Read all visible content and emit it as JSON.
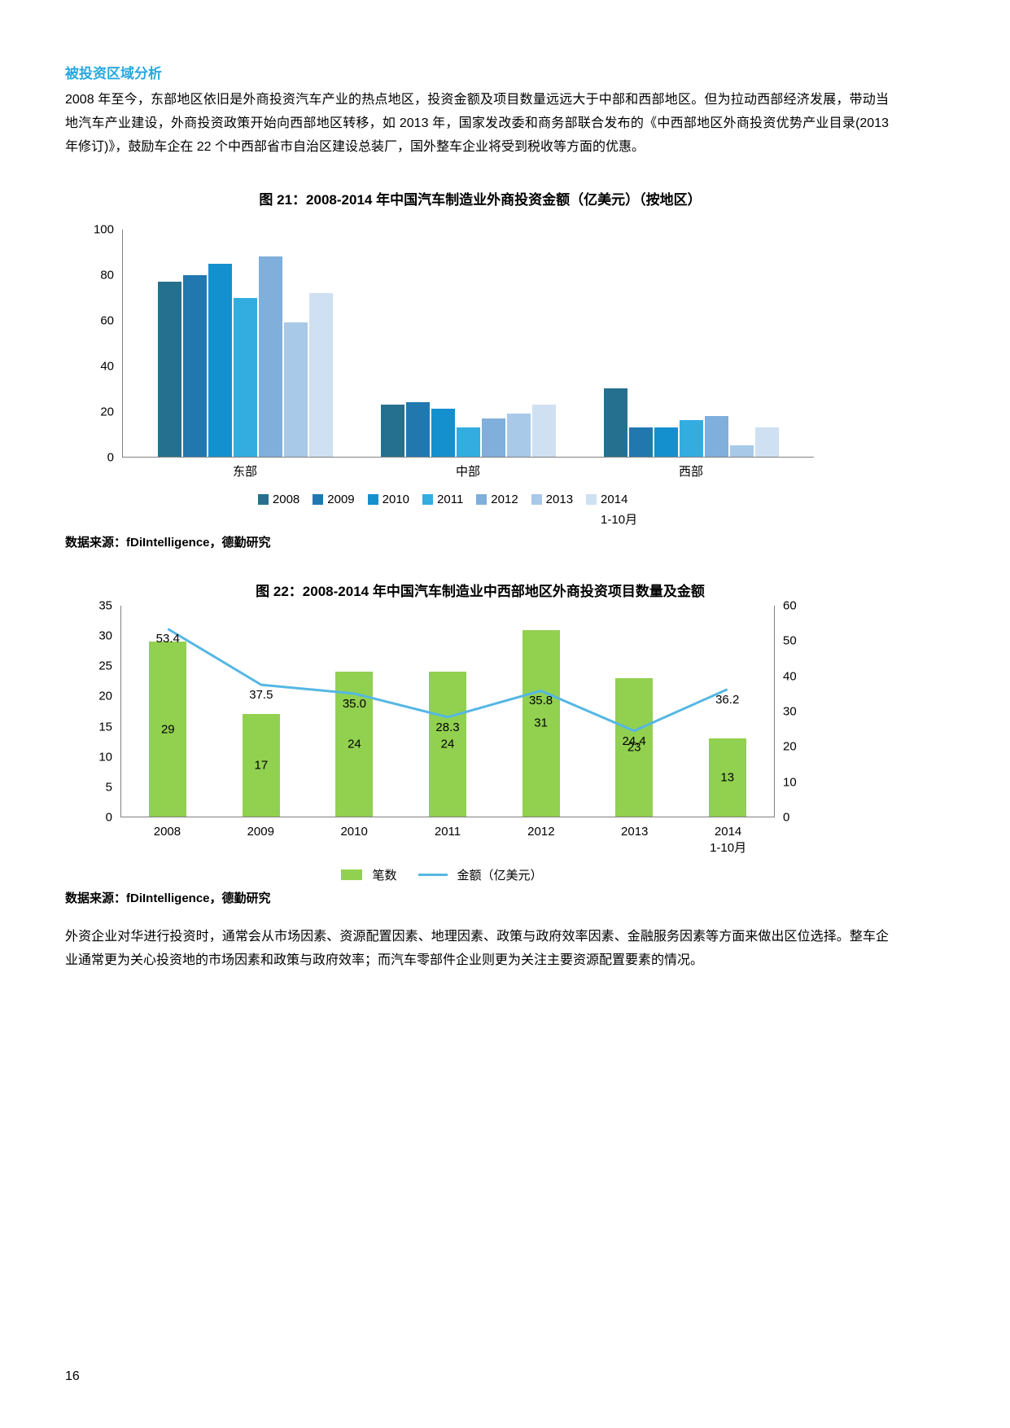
{
  "page": {
    "section_heading": "被投资区域分析",
    "paragraph_top": "2008 年至今，东部地区依旧是外商投资汽车产业的热点地区，投资金额及项目数量远远大于中部和西部地区。但为拉动西部经济发展，带动当地汽车产业建设，外商投资政策开始向西部地区转移，如 2013 年，国家发改委和商务部联合发布的《中西部地区外商投资优势产业目录(2013 年修订)》，鼓励车企在 22 个中西部省市自治区建设总装厂，国外整车企业将受到税收等方面的优惠。",
    "paragraph_bottom": "外资企业对华进行投资时，通常会从市场因素、资源配置因素、地理因素、政策与政府效率因素、金融服务因素等方面来做出区位选择。整车企业通常更为关心投资地的市场因素和政策与政府效率；而汽车零部件企业则更为关注主要资源配置要素的情况。",
    "page_number": "16"
  },
  "colors": {
    "heading": "#29A8DF",
    "axis": "#808080",
    "text": "#000000"
  },
  "chart_data": [
    {
      "type": "bar",
      "title": "图 21：2008-2014 年中国汽车制造业外商投资金额（亿美元）（按地区）",
      "source": "数据来源：fDiIntelligence，德勤研究",
      "categories": [
        "东部",
        "中部",
        "西部"
      ],
      "series": [
        {
          "name": "2008",
          "sub": "",
          "color": "#26708F",
          "values": [
            77,
            23,
            30
          ]
        },
        {
          "name": "2009",
          "sub": "",
          "color": "#2178AF",
          "values": [
            80,
            24,
            13
          ]
        },
        {
          "name": "2010",
          "sub": "",
          "color": "#1590CE",
          "values": [
            85,
            21,
            13
          ]
        },
        {
          "name": "2011",
          "sub": "",
          "color": "#33ADE0",
          "values": [
            70,
            13,
            16
          ]
        },
        {
          "name": "2012",
          "sub": "",
          "color": "#7FAFDA",
          "values": [
            88,
            17,
            18
          ]
        },
        {
          "name": "2013",
          "sub": "",
          "color": "#A8C9E8",
          "values": [
            59,
            19,
            5
          ]
        },
        {
          "name": "2014",
          "sub": "1-10月",
          "color": "#CFE0F2",
          "values": [
            72,
            23,
            13
          ]
        }
      ],
      "xlabel": "",
      "ylabel": "",
      "ylim": [
        0,
        100
      ],
      "yticks": [
        100,
        80,
        60,
        40,
        20,
        0
      ],
      "grid": false,
      "legend_position": "bottom"
    },
    {
      "type": "combo-bar-line",
      "title": "图 22：2008-2014 年中国汽车制造业中西部地区外商投资项目数量及金额",
      "source": "数据来源：fDiIntelligence，德勤研究",
      "categories": [
        "2008",
        "2009",
        "2010",
        "2011",
        "2012",
        "2013",
        "2014"
      ],
      "category_subs": [
        "",
        "",
        "",
        "",
        "",
        "",
        "1-10月"
      ],
      "bar_series": {
        "name": "笔数",
        "color": "#92D050",
        "values": [
          29,
          17,
          24,
          24,
          31,
          23,
          13
        ],
        "labels": [
          "29",
          "17",
          "24",
          "24",
          "31",
          "23",
          "13"
        ]
      },
      "line_series": {
        "name": "金额（亿美元）",
        "color": "#55B7E3",
        "values": [
          53.4,
          37.5,
          35.0,
          28.3,
          35.8,
          24.4,
          36.2
        ],
        "labels": [
          "53.4",
          "37.5",
          "35.0",
          "28.3",
          "35.8",
          "24.4",
          "36.2"
        ]
      },
      "left_ylim": [
        0,
        35
      ],
      "left_yticks": [
        35,
        30,
        25,
        20,
        15,
        10,
        5,
        0
      ],
      "right_ylim": [
        0,
        60
      ],
      "right_yticks": [
        60,
        50,
        40,
        30,
        20,
        10,
        0
      ],
      "grid": false,
      "legend_position": "bottom"
    }
  ]
}
